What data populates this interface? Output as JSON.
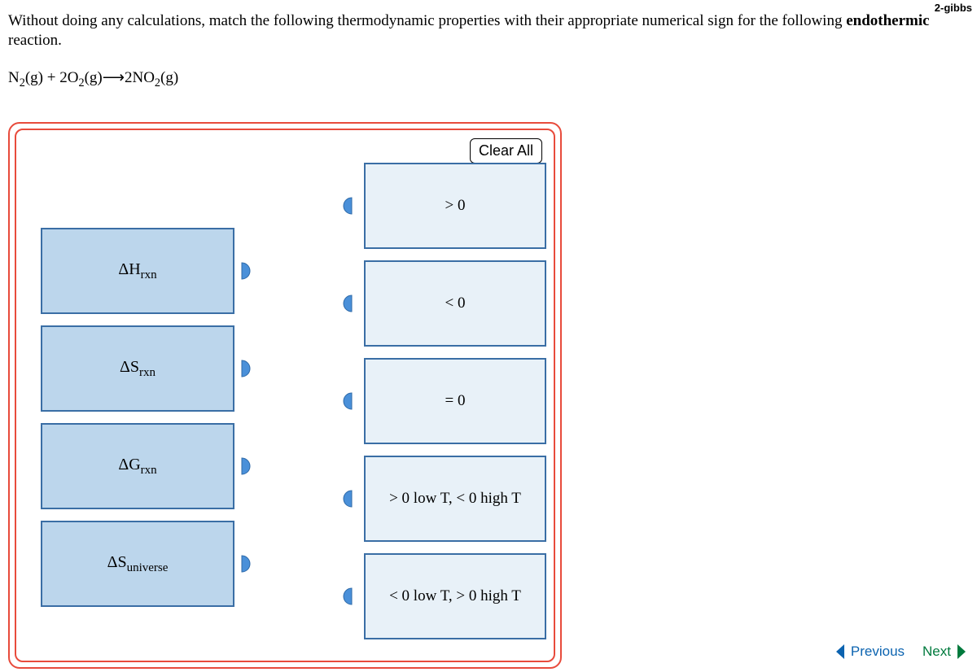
{
  "top_label": "2-gibbs",
  "question_pre": "Without doing any calculations, match the following thermodynamic properties with their appropriate numerical sign for the following ",
  "question_bold": "endothermic",
  "question_post": " reaction.",
  "equation_html": "N<sub>2</sub>(g) + 2O<sub>2</sub>(g)⟶2NO<sub>2</sub>(g)",
  "clear_all": "Clear All",
  "sources": [
    {
      "html": "ΔH<sub class='sub'>rxn</sub>",
      "name": "delta-h-rxn"
    },
    {
      "html": "ΔS<sub class='sub'>rxn</sub>",
      "name": "delta-s-rxn"
    },
    {
      "html": "ΔG<sub class='sub'>rxn</sub>",
      "name": "delta-g-rxn"
    },
    {
      "html": "ΔS<sub class='sub'>universe</sub>",
      "name": "delta-s-universe"
    }
  ],
  "destinations": [
    {
      "label": "> 0",
      "name": "gt-zero"
    },
    {
      "label": "< 0",
      "name": "lt-zero"
    },
    {
      "label": "= 0",
      "name": "eq-zero"
    },
    {
      "label": "> 0 low T, < 0 high T",
      "name": "gt-low-lt-high"
    },
    {
      "label": "< 0 low T, > 0 high T",
      "name": "lt-low-gt-high"
    }
  ],
  "colors": {
    "panel_border": "#e84b3c",
    "source_fill": "#bcd6ec",
    "source_border": "#3a6ea5",
    "dest_fill": "#e8f1f8",
    "handle_fill": "#4a90d9",
    "prev_color": "#0b63b0",
    "next_color": "#007a3d"
  },
  "nav": {
    "previous": "Previous",
    "next": "Next"
  }
}
